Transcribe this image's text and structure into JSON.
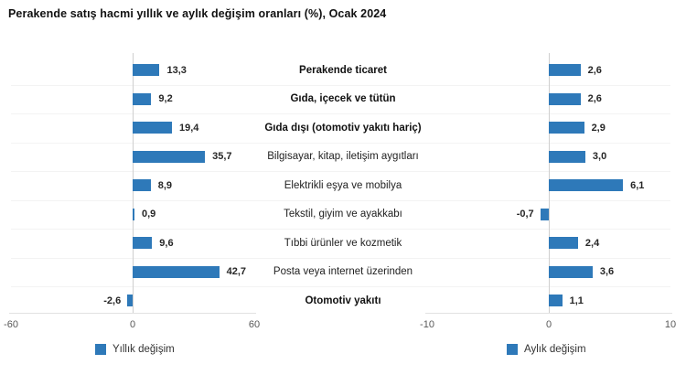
{
  "title": "Perakende satış hacmi yıllık ve aylık değişim oranları (%), Ocak 2024",
  "colors": {
    "bar": "#2e79b9",
    "zero_line": "#cfcfcf",
    "axis_line": "#e2e2e2",
    "grid_line": "#f3f3f3",
    "tick_text": "#595959",
    "value_text": "#262626"
  },
  "chart_data": {
    "type": "bar",
    "orientation": "horizontal",
    "title": "Perakende satış hacmi yıllık ve aylık değişim oranları (%), Ocak 2024",
    "categories": [
      "Perakende ticaret",
      "Gıda, içecek ve tütün",
      "Gıda dışı (otomotiv yakıtı hariç)",
      "Bilgisayar, kitap, iletişim aygıtları",
      "Elektrikli eşya ve mobilya",
      "Tekstil, giyim ve ayakkabı",
      "Tıbbi ürünler ve kozmetik",
      "Posta veya internet üzerinden",
      "Otomotiv yakıtı"
    ],
    "category_emphasis": [
      true,
      true,
      true,
      false,
      false,
      false,
      false,
      false,
      true
    ],
    "series": [
      {
        "name": "Yıllık değişim",
        "values": [
          13.3,
          9.2,
          19.4,
          35.7,
          8.9,
          0.9,
          9.6,
          42.7,
          -2.6
        ],
        "labels": [
          "13,3",
          "9,2",
          "19,4",
          "35,7",
          "8,9",
          "0,9",
          "9,6",
          "42,7",
          "-2,6"
        ],
        "xlim": [
          -60,
          60
        ],
        "ticks": [
          {
            "value": -60,
            "label": "-60"
          },
          {
            "value": 0,
            "label": "0"
          },
          {
            "value": 60,
            "label": "60"
          }
        ]
      },
      {
        "name": "Aylık değişim",
        "values": [
          2.6,
          2.6,
          2.9,
          3.0,
          6.1,
          -0.7,
          2.4,
          3.6,
          1.1
        ],
        "labels": [
          "2,6",
          "2,6",
          "2,9",
          "3,0",
          "6,1",
          "-0,7",
          "2,4",
          "3,6",
          "1,1"
        ],
        "xlim": [
          -10,
          10
        ],
        "ticks": [
          {
            "value": -10,
            "label": "-10"
          },
          {
            "value": 0,
            "label": "0"
          },
          {
            "value": 10,
            "label": "10"
          }
        ]
      }
    ],
    "legend_position": "bottom",
    "grid": "faint horizontal row separators",
    "value_labels": "outside end of bars, bold"
  }
}
